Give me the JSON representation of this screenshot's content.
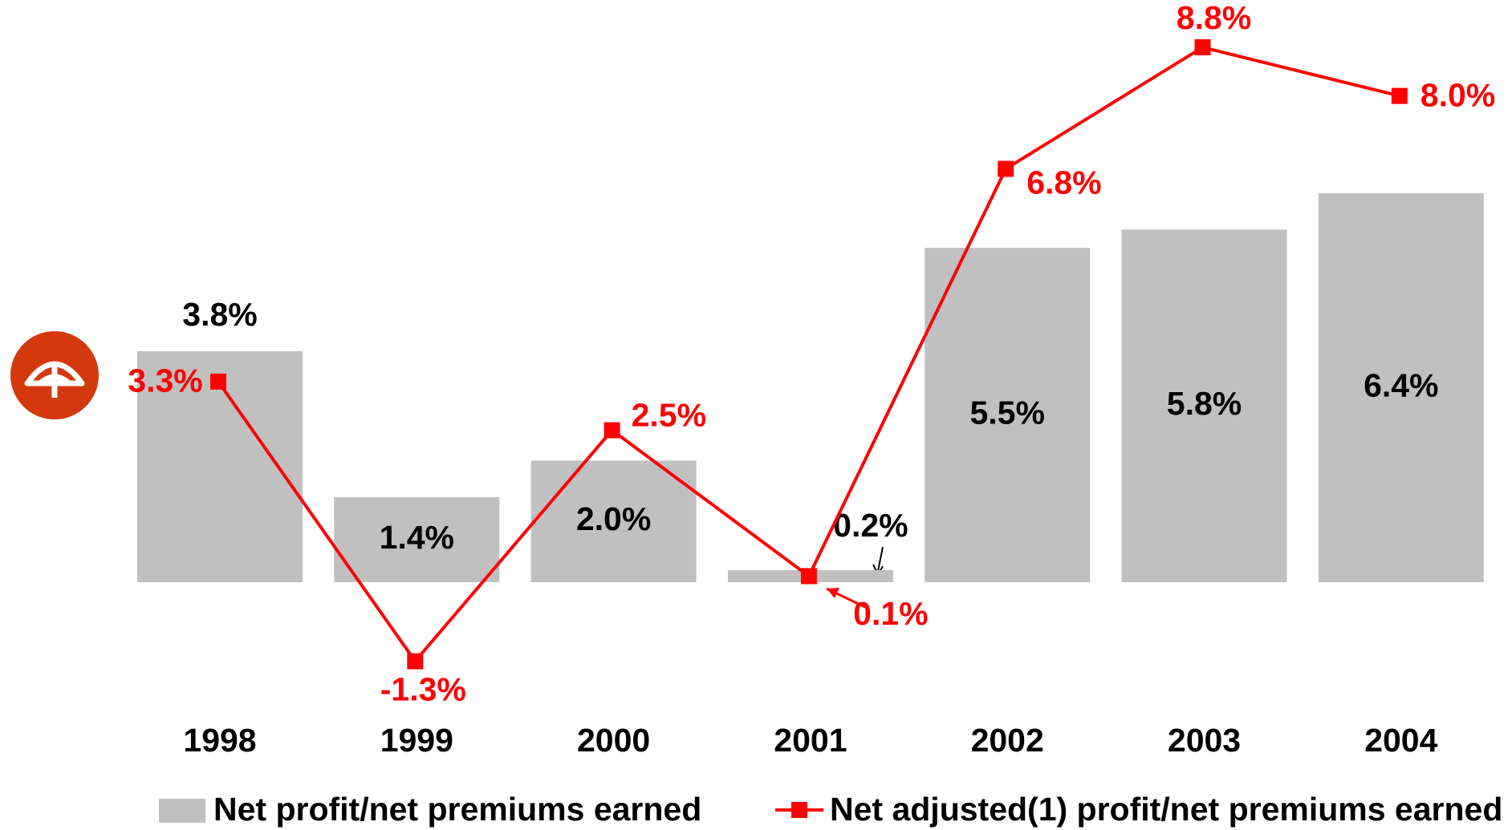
{
  "chart_data": {
    "type": "bar",
    "categories": [
      "1998",
      "1999",
      "2000",
      "2001",
      "2002",
      "2003",
      "2004"
    ],
    "series": [
      {
        "name": "Net profit/net premiums earned",
        "type": "bar",
        "color": "#c0c0c0",
        "values": [
          3.8,
          1.4,
          2.0,
          0.2,
          5.5,
          5.8,
          6.4
        ],
        "value_labels": [
          "3.8%",
          "1.4%",
          "2.0%",
          "0.2%",
          "5.5%",
          "5.8%",
          "6.4%"
        ]
      },
      {
        "name": "Net adjusted(1) profit/net premiums earned",
        "type": "line",
        "color": "#ff0000",
        "values": [
          3.3,
          -1.3,
          2.5,
          0.1,
          6.8,
          8.8,
          8.0
        ],
        "value_labels": [
          "3.3%",
          "-1.3%",
          "2.5%",
          "0.1%",
          "6.8%",
          "8.8%",
          "8.0%"
        ]
      }
    ]
  }
}
